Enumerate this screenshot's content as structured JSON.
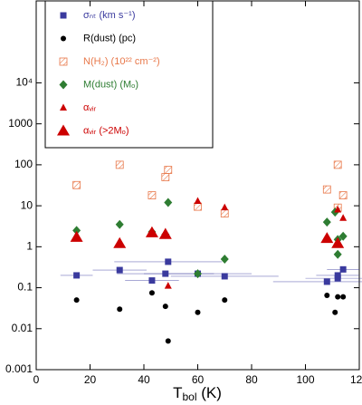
{
  "chart_data": {
    "type": "scatter",
    "x_label": {
      "main": "T",
      "sub": "bol",
      "rest": " (K)"
    },
    "xlim": [
      0,
      120
    ],
    "xticks": [
      0,
      20,
      40,
      60,
      80,
      100,
      120
    ],
    "ylim": [
      0.001,
      1000000
    ],
    "log_y": true,
    "yticks": [
      0.001,
      0.01,
      0.1,
      1,
      10,
      100,
      1000,
      {
        "value": 10000,
        "label": "10⁴"
      }
    ],
    "series": [
      {
        "name": "σₙₜ (km s⁻¹)",
        "color": "#3a3a9e",
        "marker": "square",
        "x": [
          15,
          31,
          43,
          48,
          49,
          60,
          70,
          108,
          112,
          112,
          114
        ],
        "values": [
          0.2,
          0.27,
          0.15,
          0.22,
          0.43,
          0.22,
          0.19,
          0.14,
          0.17,
          0.2,
          0.28
        ],
        "xerr": [
          6,
          10,
          10,
          18,
          20,
          20,
          20,
          20,
          12,
          8,
          6
        ]
      },
      {
        "name": "R(dust) (pc)",
        "color": "#000000",
        "marker": "circle",
        "x": [
          15,
          31,
          43,
          48,
          49,
          60,
          70,
          108,
          111,
          112,
          114
        ],
        "values": [
          0.05,
          0.03,
          0.075,
          0.035,
          0.005,
          0.025,
          0.05,
          0.065,
          0.025,
          0.06,
          0.06
        ]
      },
      {
        "name": "N(H₂) (10²² cm⁻²)",
        "color": "#e8784a",
        "marker": "hatched-square",
        "x": [
          15,
          31,
          43,
          48,
          49,
          60,
          70,
          108,
          112,
          112,
          114
        ],
        "values": [
          32,
          100,
          18,
          50,
          75,
          9.5,
          6.5,
          25,
          100,
          9,
          18
        ]
      },
      {
        "name": "M(dust) (Mₒ)",
        "color": "#2e7d32",
        "marker": "diamond",
        "x": [
          15,
          31,
          43,
          48,
          49,
          60,
          70,
          108,
          111,
          112,
          112,
          114
        ],
        "values": [
          2.5,
          3.5,
          2.3,
          2.0,
          12,
          0.22,
          0.5,
          4,
          7,
          1.5,
          0.65,
          1.8
        ]
      },
      {
        "name": "αᵥᵢᵣ",
        "color": "#cc0000",
        "marker": "triangle",
        "x": [
          43,
          48,
          49,
          60,
          70,
          112,
          114
        ],
        "values": [
          2.5,
          2.3,
          0.11,
          13,
          9,
          8,
          5
        ]
      },
      {
        "name": "αᵥᵢᵣ (>2Mₒ)",
        "color": "#cc0000",
        "marker": "large-triangle",
        "x": [
          15,
          31,
          43,
          48,
          108,
          112
        ],
        "values": [
          1.7,
          1.2,
          2.2,
          2.0,
          1.6,
          1.2
        ]
      }
    ]
  }
}
